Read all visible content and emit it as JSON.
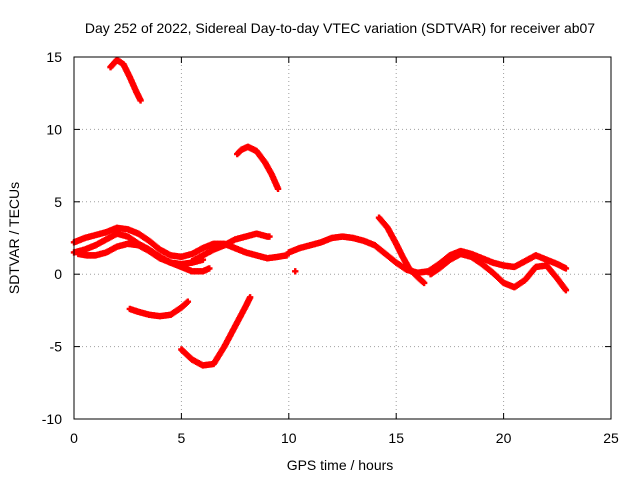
{
  "chart_data": {
    "type": "scatter",
    "title": "Day 252 of 2022, Sidereal Day-to-day VTEC variation (SDTVAR) for receiver ab07",
    "xlabel": "GPS time / hours",
    "ylabel": "SDTVAR / TECUs",
    "xlim": [
      0,
      25
    ],
    "ylim": [
      -10,
      15
    ],
    "xticks": [
      0,
      5,
      10,
      15,
      20,
      25
    ],
    "yticks": [
      -10,
      -5,
      0,
      5,
      10,
      15
    ],
    "xtick_labels": [
      "0",
      "5",
      "10",
      "15",
      "20",
      "25"
    ],
    "ytick_labels": [
      "-10",
      "-5",
      "0",
      "5",
      "10",
      "15"
    ],
    "grid": true,
    "color": "#ff0000",
    "marker": "plus",
    "series": [
      {
        "name": "arc-1",
        "x": [
          1.7,
          2.0,
          2.3,
          2.6,
          2.9,
          3.1
        ],
        "y": [
          14.3,
          14.8,
          14.5,
          13.6,
          12.6,
          12.0
        ]
      },
      {
        "name": "arc-2",
        "x": [
          7.6,
          7.8,
          8.1,
          8.5,
          8.9,
          9.2,
          9.5
        ],
        "y": [
          8.3,
          8.6,
          8.8,
          8.5,
          7.7,
          6.9,
          5.9
        ]
      },
      {
        "name": "arc-3",
        "x": [
          0.0,
          0.5,
          1.0,
          1.5,
          2.0,
          2.5,
          3.0,
          3.5,
          4.0,
          4.5,
          5.0,
          5.5,
          6.0,
          6.5,
          7.0,
          7.5,
          8.0,
          8.5,
          9.0,
          9.5,
          9.9
        ],
        "y": [
          2.2,
          2.5,
          2.7,
          2.9,
          3.2,
          3.1,
          2.8,
          2.3,
          1.7,
          1.3,
          1.2,
          1.4,
          1.8,
          2.1,
          2.1,
          1.8,
          1.5,
          1.3,
          1.1,
          1.2,
          1.3
        ]
      },
      {
        "name": "arc-4",
        "x": [
          0.0,
          0.5,
          1.0,
          1.5,
          2.0,
          2.5,
          3.0,
          3.5,
          4.0,
          4.5,
          5.0,
          5.5,
          6.0,
          6.3
        ],
        "y": [
          1.5,
          1.7,
          2.0,
          2.4,
          2.8,
          2.6,
          2.1,
          1.7,
          1.2,
          0.8,
          0.5,
          0.2,
          0.2,
          0.4
        ]
      },
      {
        "name": "arc-5",
        "x": [
          0.2,
          0.6,
          1.0,
          1.5,
          2.0,
          2.5,
          3.0,
          3.5,
          4.0,
          4.5,
          5.0,
          5.5,
          6.0
        ],
        "y": [
          1.4,
          1.3,
          1.3,
          1.5,
          1.9,
          2.1,
          2.0,
          1.6,
          1.1,
          0.8,
          0.7,
          0.8,
          1.0
        ]
      },
      {
        "name": "arc-6",
        "x": [
          5.5,
          6.0,
          6.5,
          7.0,
          7.5,
          8.0,
          8.5,
          9.0,
          9.1
        ],
        "y": [
          0.9,
          1.3,
          1.7,
          2.0,
          2.4,
          2.6,
          2.8,
          2.6,
          2.6
        ]
      },
      {
        "name": "arc-7",
        "x": [
          10.0,
          10.5,
          11.0,
          11.5,
          12.0,
          12.5,
          13.0,
          13.5,
          14.0,
          14.5,
          15.0,
          15.5,
          16.0,
          16.5,
          17.0,
          17.5,
          18.0,
          18.5,
          19.0,
          19.5,
          20.0,
          20.5,
          21.0,
          21.5,
          22.0,
          22.5,
          22.9
        ],
        "y": [
          1.5,
          1.8,
          2.0,
          2.2,
          2.5,
          2.6,
          2.5,
          2.3,
          2.0,
          1.4,
          0.8,
          0.3,
          0.1,
          0.2,
          0.7,
          1.3,
          1.6,
          1.4,
          1.1,
          0.8,
          0.6,
          0.5,
          0.9,
          1.3,
          1.0,
          0.7,
          0.4
        ]
      },
      {
        "name": "arc-8",
        "x": [
          14.2,
          14.6,
          15.0,
          15.3,
          15.6,
          16.0,
          16.3
        ],
        "y": [
          3.9,
          3.2,
          2.1,
          1.2,
          0.4,
          -0.2,
          -0.6
        ]
      },
      {
        "name": "arc-9",
        "x": [
          16.6,
          17.0,
          17.5,
          18.0,
          18.5,
          19.0,
          19.5,
          20.0,
          20.5,
          21.0,
          21.5,
          22.0,
          22.5,
          22.9
        ],
        "y": [
          0.0,
          0.4,
          1.0,
          1.4,
          1.2,
          0.7,
          0.1,
          -0.6,
          -0.9,
          -0.4,
          0.5,
          0.6,
          -0.3,
          -1.1
        ]
      },
      {
        "name": "arc-10",
        "x": [
          2.6,
          3.0,
          3.5,
          4.0,
          4.5,
          5.0,
          5.3
        ],
        "y": [
          -2.4,
          -2.6,
          -2.8,
          -2.9,
          -2.8,
          -2.3,
          -1.9
        ]
      },
      {
        "name": "arc-11",
        "x": [
          5.0,
          5.5,
          6.0,
          6.5,
          7.0,
          7.5,
          8.0,
          8.2
        ],
        "y": [
          -5.2,
          -5.9,
          -6.3,
          -6.2,
          -5.0,
          -3.6,
          -2.2,
          -1.6
        ]
      },
      {
        "name": "dot",
        "x": [
          10.3
        ],
        "y": [
          0.2
        ]
      }
    ]
  }
}
